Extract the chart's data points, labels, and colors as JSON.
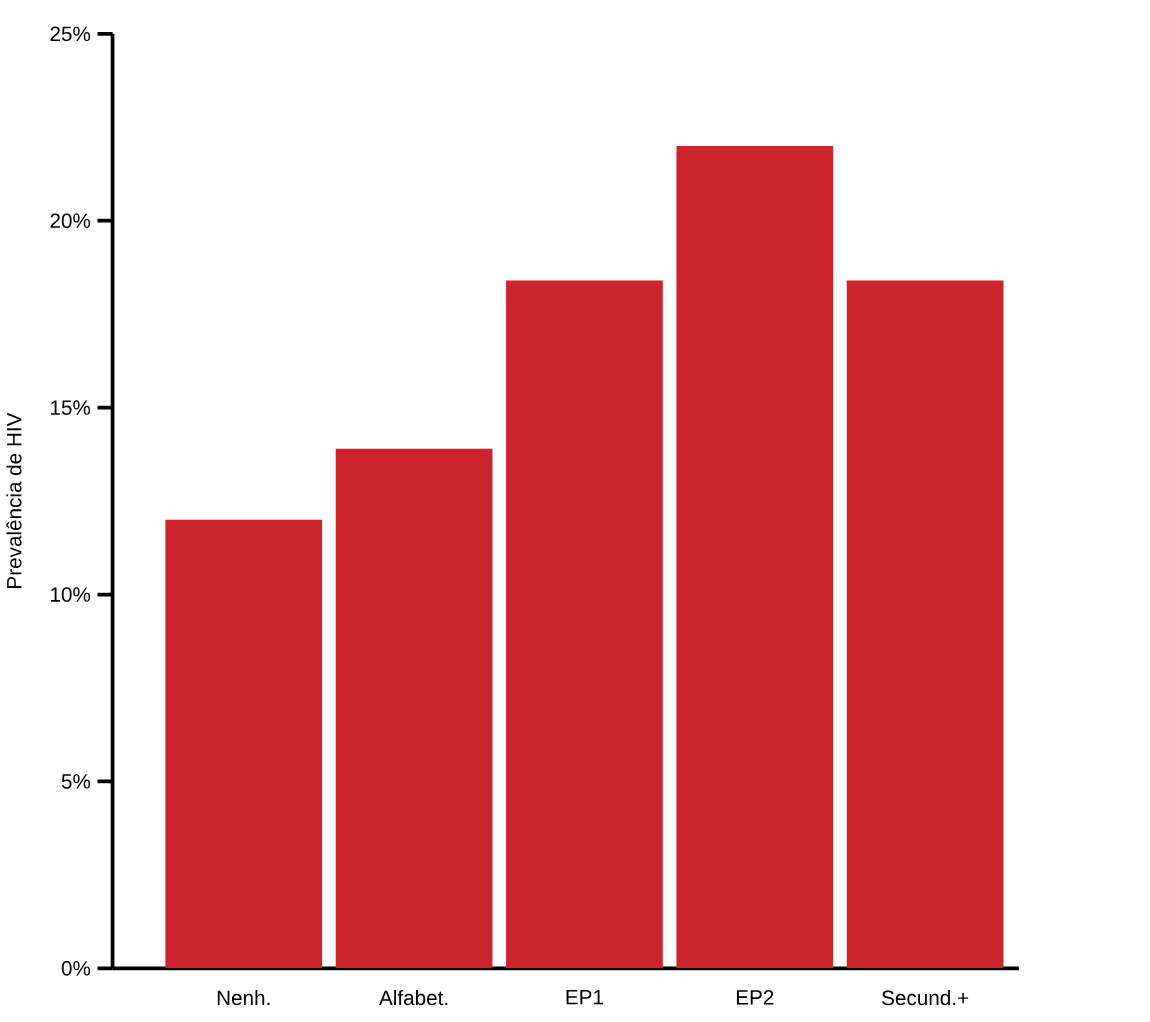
{
  "chart_data": {
    "type": "bar",
    "ylabel": "Prevalência de HIV",
    "categories": [
      "Nenh.",
      "Alfabet.",
      "EP1",
      "EP2",
      "Secund.+"
    ],
    "values": [
      12.0,
      13.9,
      18.4,
      22.0,
      18.4
    ],
    "color": "#cc242d",
    "ylim": [
      0,
      25
    ],
    "yticks": [
      {
        "value": 0,
        "label": "0%"
      },
      {
        "value": 5,
        "label": "5%"
      },
      {
        "value": 10,
        "label": "10%"
      },
      {
        "value": 15,
        "label": "15%"
      },
      {
        "value": 20,
        "label": "20%"
      },
      {
        "value": 25,
        "label": "25%"
      }
    ]
  }
}
